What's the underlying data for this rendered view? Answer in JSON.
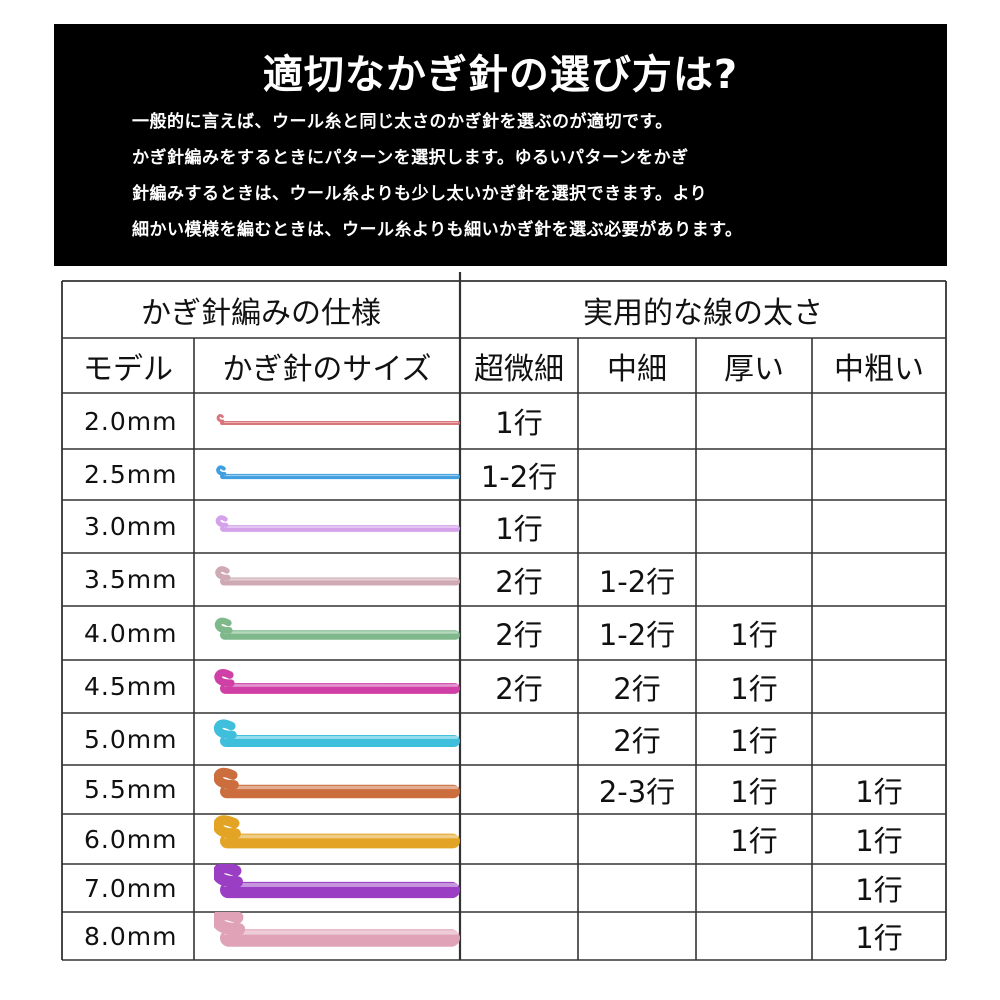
{
  "banner": {
    "title": "適切なかぎ針の選び方は?",
    "lines": [
      "一般的に言えば、ウール糸と同じ太さのかぎ針を選ぶのが適切です。",
      "かぎ針編みをするときにパターンを選択します。ゆるいパターンをかぎ",
      "針編みするときは、ウール糸よりも少し太いかぎ針を選択できます。より",
      "細かい模様を編むときは、ウール糸よりも細いかぎ針を選ぶ必要があります。"
    ]
  },
  "table": {
    "left_group": "かぎ針編みの仕様",
    "right_group": "実用的な線の太さ",
    "col_model": "モデル",
    "col_size": "かぎ針のサイズ",
    "weights": [
      "超微細",
      "中細",
      "厚い",
      "中粗い"
    ],
    "rows": [
      {
        "model": "2.0mm",
        "hook_color": "#d9747a",
        "cells": [
          "1行",
          "",
          "",
          ""
        ]
      },
      {
        "model": "2.5mm",
        "hook_color": "#3f9fe0",
        "cells": [
          "1-2行",
          "",
          "",
          ""
        ]
      },
      {
        "model": "3.0mm",
        "hook_color": "#d4a2ea",
        "cells": [
          "1行",
          "",
          "",
          ""
        ]
      },
      {
        "model": "3.5mm",
        "hook_color": "#cfaab4",
        "cells": [
          "2行",
          "1-2行",
          "",
          ""
        ]
      },
      {
        "model": "4.0mm",
        "hook_color": "#7fb98b",
        "cells": [
          "2行",
          "1-2行",
          "1行",
          ""
        ]
      },
      {
        "model": "4.5mm",
        "hook_color": "#cf3fa6",
        "cells": [
          "2行",
          "2行",
          "1行",
          ""
        ]
      },
      {
        "model": "5.0mm",
        "hook_color": "#3fbfdc",
        "cells": [
          "",
          "2行",
          "1行",
          ""
        ]
      },
      {
        "model": "5.5mm",
        "hook_color": "#cc6d3d",
        "cells": [
          "",
          "2-3行",
          "1行",
          "1行"
        ]
      },
      {
        "model": "6.0mm",
        "hook_color": "#e3a425",
        "cells": [
          "",
          "",
          "1行",
          "1行"
        ]
      },
      {
        "model": "7.0mm",
        "hook_color": "#9a3fc4",
        "cells": [
          "",
          "",
          "",
          "1行"
        ]
      },
      {
        "model": "8.0mm",
        "hook_color": "#dfa2b7",
        "cells": [
          "",
          "",
          "",
          "1行"
        ]
      }
    ]
  }
}
